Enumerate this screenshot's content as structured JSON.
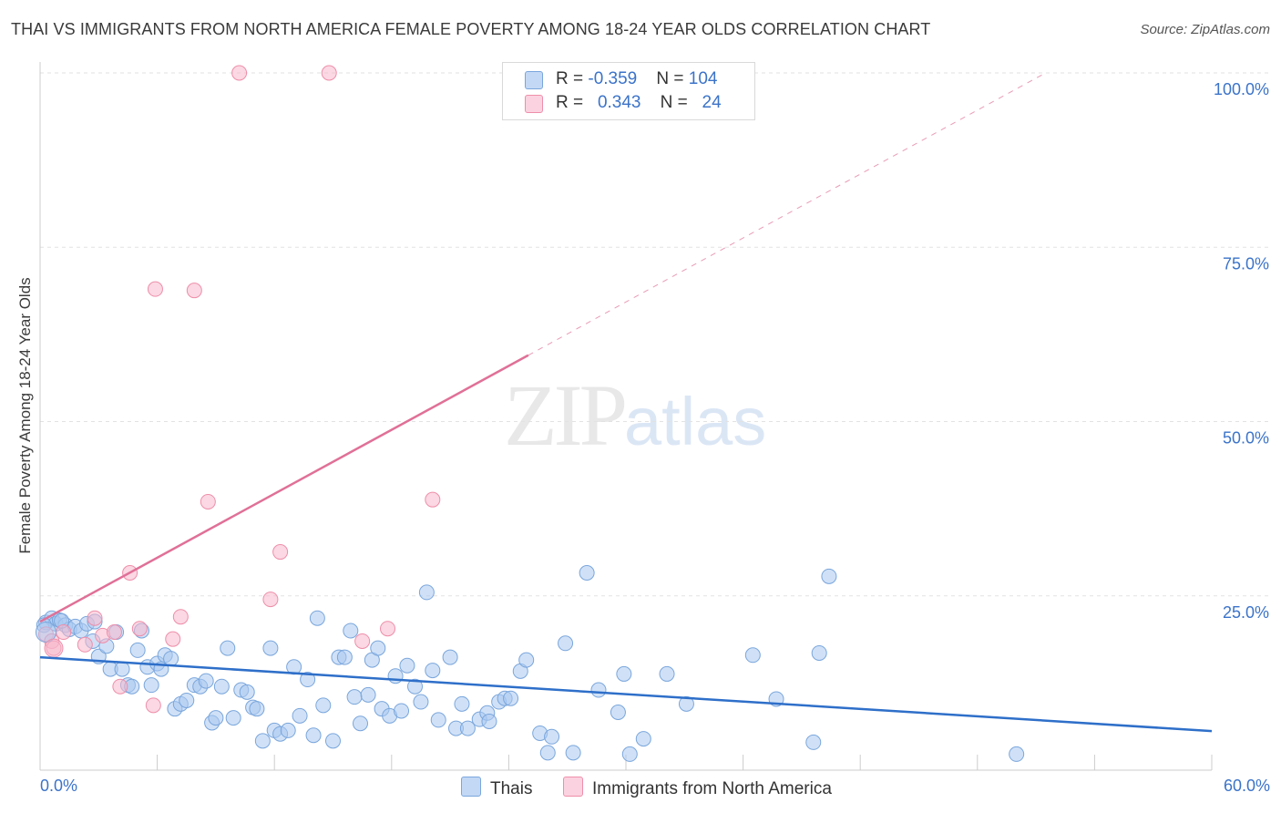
{
  "title": "THAI VS IMMIGRANTS FROM NORTH AMERICA FEMALE POVERTY AMONG 18-24 YEAR OLDS CORRELATION CHART",
  "source": "Source: ZipAtlas.com",
  "watermark": {
    "zip": "ZIP",
    "atlas": "atlas"
  },
  "legend": {
    "rows": [
      {
        "r_label": "R = ",
        "r_value": "-0.359",
        "n_label": "N = ",
        "n_value": "104",
        "color": "#a9c8f0"
      },
      {
        "r_label": "R = ",
        "r_value": "0.343",
        "n_label": "N = ",
        "n_value": "24",
        "color": "#f7b8cc"
      }
    ]
  },
  "bottom_legend": {
    "thais": "Thais",
    "immigrants": "Immigrants from North America"
  },
  "colors": {
    "blue_fill": "#a9c8f0",
    "blue_stroke": "#7aa6dc",
    "blue_line": "#2e6fc9",
    "pink_fill": "#f7b8cc",
    "pink_stroke": "#ee8eaa",
    "pink_line": "#e07097",
    "axis_text": "#3b73c9",
    "grid": "#e2e2e2"
  },
  "chart_data": {
    "type": "scatter",
    "title": "THAI VS IMMIGRANTS FROM NORTH AMERICA FEMALE POVERTY AMONG 18-24 YEAR OLDS CORRELATION CHART",
    "xlabel": "",
    "ylabel": "Female Poverty Among 18-24 Year Olds",
    "xlim": [
      0,
      60
    ],
    "ylim": [
      0,
      100
    ],
    "x_tick_labels": [
      "0.0%",
      "60.0%"
    ],
    "y_tick_labels": [
      "25.0%",
      "50.0%",
      "75.0%",
      "100.0%"
    ],
    "y_ticks": [
      25,
      50,
      75,
      100
    ],
    "grid": true,
    "legend_position": "top-center",
    "series": [
      {
        "name": "Thais",
        "r": -0.359,
        "n": 104,
        "trend": {
          "x": [
            0,
            60
          ],
          "y": [
            16.2,
            5.6
          ],
          "dashed_from": null
        },
        "points": [
          [
            0.3,
            21.2
          ],
          [
            0.6,
            21.8
          ],
          [
            0.8,
            21.0
          ],
          [
            1.0,
            21.5
          ],
          [
            1.3,
            20.8
          ],
          [
            1.5,
            20.2
          ],
          [
            1.8,
            20.6
          ],
          [
            2.1,
            20.0
          ],
          [
            2.4,
            21.0
          ],
          [
            2.7,
            18.5
          ],
          [
            2.8,
            21.3
          ],
          [
            3.0,
            16.3
          ],
          [
            3.4,
            17.8
          ],
          [
            3.6,
            14.5
          ],
          [
            3.9,
            19.8
          ],
          [
            4.2,
            14.5
          ],
          [
            4.5,
            12.2
          ],
          [
            4.7,
            12.0
          ],
          [
            5.0,
            17.2
          ],
          [
            5.2,
            20.0
          ],
          [
            5.5,
            14.8
          ],
          [
            5.7,
            12.2
          ],
          [
            6.0,
            15.3
          ],
          [
            6.2,
            14.5
          ],
          [
            6.4,
            16.5
          ],
          [
            6.7,
            16.0
          ],
          [
            6.9,
            8.8
          ],
          [
            7.2,
            9.5
          ],
          [
            7.5,
            10.0
          ],
          [
            7.9,
            12.2
          ],
          [
            8.2,
            12.0
          ],
          [
            8.5,
            12.8
          ],
          [
            8.8,
            6.8
          ],
          [
            9.0,
            7.5
          ],
          [
            9.3,
            12.0
          ],
          [
            9.6,
            17.5
          ],
          [
            9.9,
            7.5
          ],
          [
            10.3,
            11.5
          ],
          [
            10.6,
            11.2
          ],
          [
            10.9,
            9.0
          ],
          [
            11.1,
            8.8
          ],
          [
            11.4,
            4.2
          ],
          [
            11.8,
            17.5
          ],
          [
            12.0,
            5.7
          ],
          [
            12.3,
            5.2
          ],
          [
            12.7,
            5.7
          ],
          [
            13.0,
            14.8
          ],
          [
            13.3,
            7.8
          ],
          [
            13.7,
            13.0
          ],
          [
            14.0,
            5.0
          ],
          [
            14.2,
            21.8
          ],
          [
            14.5,
            9.3
          ],
          [
            15.0,
            4.2
          ],
          [
            15.3,
            16.2
          ],
          [
            15.6,
            16.2
          ],
          [
            15.9,
            20.0
          ],
          [
            16.1,
            10.5
          ],
          [
            16.4,
            6.7
          ],
          [
            16.8,
            10.8
          ],
          [
            17.0,
            15.8
          ],
          [
            17.3,
            17.5
          ],
          [
            17.5,
            8.8
          ],
          [
            17.9,
            7.8
          ],
          [
            18.2,
            13.5
          ],
          [
            18.5,
            8.5
          ],
          [
            18.8,
            15.0
          ],
          [
            19.2,
            12.0
          ],
          [
            19.5,
            9.8
          ],
          [
            19.8,
            25.5
          ],
          [
            20.1,
            14.3
          ],
          [
            20.4,
            7.2
          ],
          [
            21.0,
            16.2
          ],
          [
            21.3,
            6.0
          ],
          [
            21.6,
            9.5
          ],
          [
            21.9,
            6.0
          ],
          [
            22.5,
            7.3
          ],
          [
            22.9,
            8.2
          ],
          [
            23.0,
            7.0
          ],
          [
            23.5,
            9.8
          ],
          [
            23.8,
            10.3
          ],
          [
            24.1,
            10.3
          ],
          [
            24.6,
            14.2
          ],
          [
            24.9,
            15.8
          ],
          [
            25.6,
            5.3
          ],
          [
            26.0,
            2.5
          ],
          [
            26.2,
            4.8
          ],
          [
            26.9,
            18.2
          ],
          [
            27.3,
            2.5
          ],
          [
            28.0,
            28.3
          ],
          [
            28.6,
            11.5
          ],
          [
            29.6,
            8.3
          ],
          [
            29.9,
            13.8
          ],
          [
            30.2,
            2.3
          ],
          [
            30.9,
            4.5
          ],
          [
            32.1,
            13.8
          ],
          [
            33.1,
            9.5
          ],
          [
            36.5,
            16.5
          ],
          [
            37.7,
            10.2
          ],
          [
            39.6,
            4.0
          ],
          [
            39.9,
            16.8
          ],
          [
            40.4,
            27.8
          ],
          [
            50.0,
            2.3
          ],
          [
            0.2,
            20.8
          ],
          [
            1.1,
            21.4
          ]
        ]
      },
      {
        "name": "Immigrants from North America",
        "r": 0.343,
        "n": 24,
        "trend": {
          "x": [
            0,
            60
          ],
          "y": [
            21.3,
            113.0
          ],
          "solid_until_x": 25.0
        },
        "points": [
          [
            0.3,
            19.5
          ],
          [
            0.6,
            18.5
          ],
          [
            0.7,
            17.5
          ],
          [
            1.2,
            19.8
          ],
          [
            2.3,
            18.0
          ],
          [
            2.8,
            21.8
          ],
          [
            3.2,
            19.3
          ],
          [
            3.8,
            19.8
          ],
          [
            4.1,
            12.0
          ],
          [
            4.6,
            28.3
          ],
          [
            5.1,
            20.3
          ],
          [
            5.8,
            9.3
          ],
          [
            5.9,
            69.0
          ],
          [
            6.8,
            18.8
          ],
          [
            7.2,
            22.0
          ],
          [
            7.9,
            68.8
          ],
          [
            8.6,
            38.5
          ],
          [
            10.2,
            100.0
          ],
          [
            11.8,
            24.5
          ],
          [
            12.3,
            31.3
          ],
          [
            14.8,
            100.0
          ],
          [
            16.5,
            18.5
          ],
          [
            17.8,
            20.3
          ],
          [
            20.1,
            38.8
          ]
        ]
      }
    ]
  }
}
